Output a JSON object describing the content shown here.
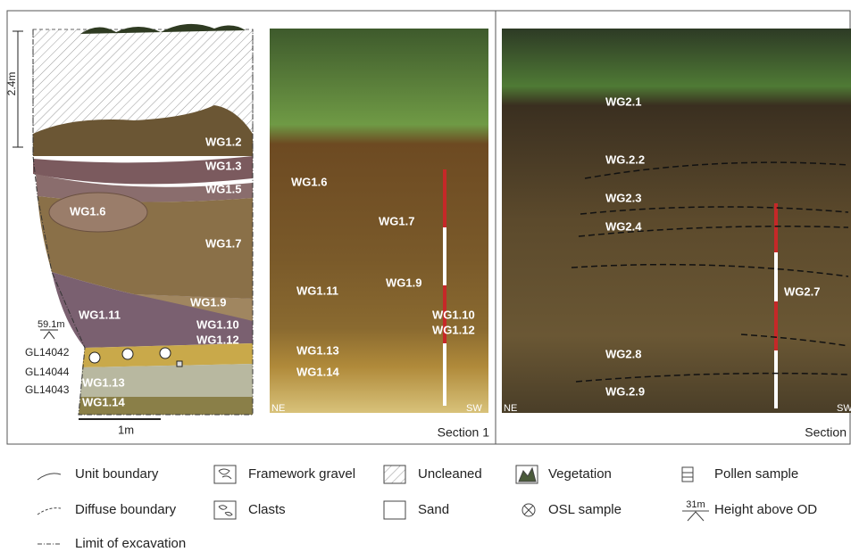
{
  "drawing": {
    "height_bar": "2.4m",
    "units": [
      "WG1.2",
      "WG1.3",
      "WG1.5",
      "WG1.6",
      "WG1.7",
      "WG1.9",
      "WG1.11",
      "WG1.10",
      "WG1.12",
      "WG1.13",
      "WG1.14"
    ],
    "od_height": "59.1m",
    "samples": [
      "GL14042",
      "GL14044",
      "GL14043"
    ],
    "scale": "1m"
  },
  "section1": {
    "labels": [
      "WG1.6",
      "WG1.7",
      "WG1.9",
      "WG1.11",
      "WG1.10",
      "WG1.12",
      "WG1.13",
      "WG1.14"
    ],
    "ne": "NE",
    "sw": "SW",
    "caption": "Section 1"
  },
  "section2": {
    "labels": [
      "WG2.1",
      "WG.2.2",
      "WG2.3",
      "WG2.4",
      "WG2.7",
      "WG2.8",
      "WG.2.9"
    ],
    "ne": "NE",
    "sw": "SW",
    "caption": "Section"
  },
  "legend": [
    {
      "label": "Unit boundary"
    },
    {
      "label": "Framework gravel"
    },
    {
      "label": "Uncleaned"
    },
    {
      "label": "Vegetation"
    },
    {
      "label": "Pollen sample"
    },
    {
      "label": "Diffuse boundary"
    },
    {
      "label": "Clasts"
    },
    {
      "label": "Sand"
    },
    {
      "label": "OSL sample"
    },
    {
      "symbol_text": "31m",
      "label": "Height above OD"
    },
    {
      "label": "Limit of excavation"
    }
  ]
}
